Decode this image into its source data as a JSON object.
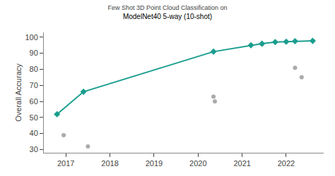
{
  "chart_data": {
    "type": "line",
    "subtitle": "Few Shot 3D Point Cloud Classification on",
    "title": "ModelNet40 5-way (10-shot)",
    "y_label": "Overall Accuracy",
    "xlim": [
      2016.5,
      2022.85
    ],
    "ylim": [
      28,
      103
    ],
    "xticks": [
      2017,
      2018,
      2019,
      2020,
      2021,
      2022
    ],
    "yticks": [
      30,
      40,
      50,
      60,
      70,
      80,
      90,
      100
    ],
    "grid": false,
    "series": [
      {
        "type": "line",
        "color": "#1a9e8f",
        "marker": "diamond",
        "line_style": "solid",
        "x": [
          2016.8,
          2017.4,
          2020.35,
          2021.2,
          2021.45,
          2021.75,
          2022.0,
          2022.2,
          2022.6
        ],
        "values": [
          52,
          66,
          91,
          95,
          96,
          97,
          97.2,
          97.5,
          97.7
        ]
      },
      {
        "type": "scatter",
        "color": "#aaaaaa",
        "marker": "circle",
        "x": [
          2016.95,
          2017.5,
          2020.35,
          2020.38,
          2021.45,
          2022.2,
          2022.35
        ],
        "values": [
          39,
          32,
          63,
          60,
          95.5,
          81,
          75
        ]
      }
    ]
  }
}
